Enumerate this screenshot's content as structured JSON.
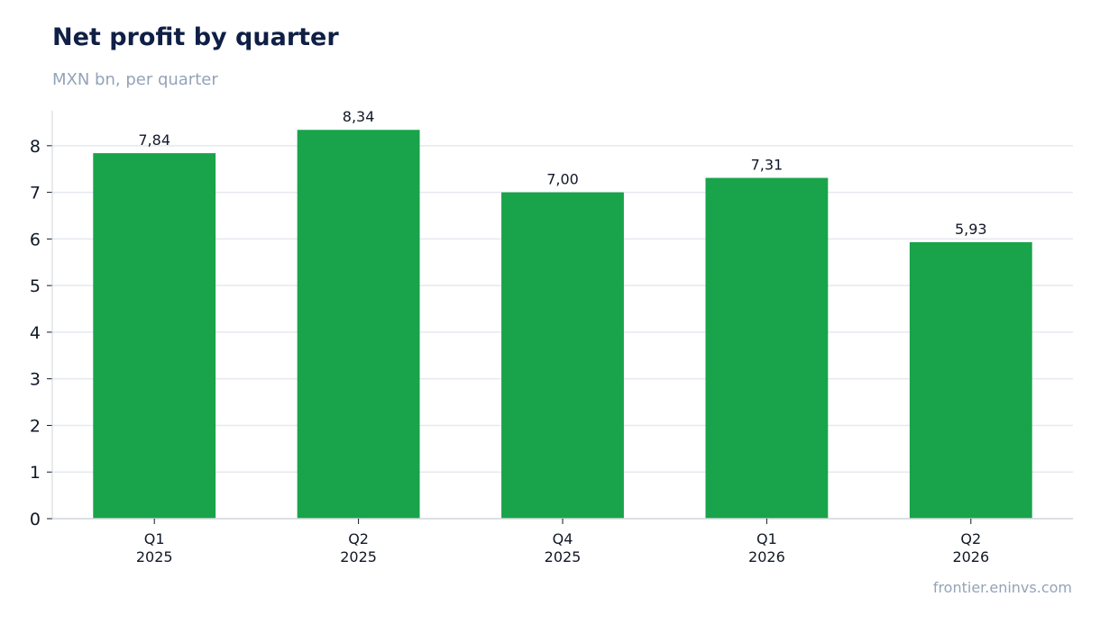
{
  "title": "Net profit by quarter",
  "subtitle": "MXN bn, per quarter",
  "source": "frontier.eninvs.com",
  "colors": {
    "bar": "#19a34a",
    "grid": "#e5e9f0",
    "axis": "#d1d5db"
  },
  "chart_data": {
    "type": "bar",
    "title": "Net profit by quarter",
    "subtitle": "MXN bn, per quarter",
    "categories": [
      [
        "Q1",
        "2025"
      ],
      [
        "Q2",
        "2025"
      ],
      [
        "Q4",
        "2025"
      ],
      [
        "Q1",
        "2026"
      ],
      [
        "Q2",
        "2026"
      ]
    ],
    "values": [
      7.84,
      8.34,
      7.0,
      7.31,
      5.93
    ],
    "data_labels": [
      "7,84",
      "8,34",
      "7,00",
      "7,31",
      "5,93"
    ],
    "yticks": [
      0,
      1,
      2,
      3,
      4,
      5,
      6,
      7,
      8
    ],
    "ylim": [
      0,
      8.75
    ],
    "xlabel": "",
    "ylabel": "",
    "grid": true,
    "legend": "none"
  }
}
